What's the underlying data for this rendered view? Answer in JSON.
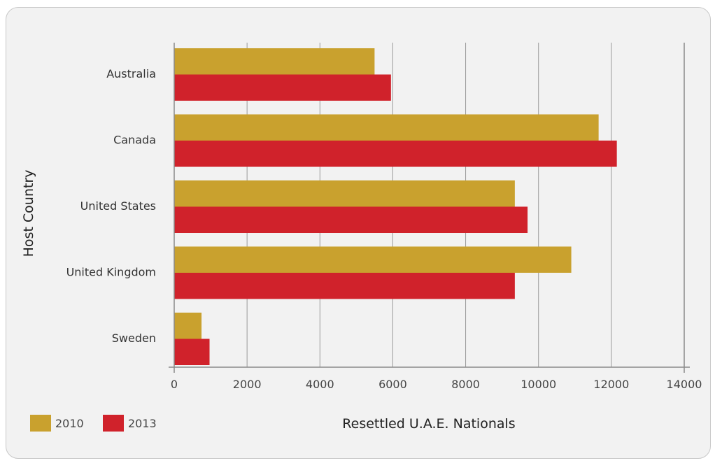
{
  "chart_data": {
    "type": "bar",
    "orientation": "horizontal",
    "title": "",
    "xlabel": "Resettled U.A.E. Nationals",
    "ylabel": "Host Country",
    "categories": [
      "Australia",
      "Canada",
      "United States",
      "United Kingdom",
      "Sweden"
    ],
    "series": [
      {
        "name": "2010",
        "color": "#c9a12e",
        "values": [
          5500,
          11650,
          9350,
          10900,
          750
        ]
      },
      {
        "name": "2013",
        "color": "#d0222b",
        "values": [
          5950,
          12150,
          9700,
          9350,
          970
        ]
      }
    ],
    "xlim": [
      0,
      14000
    ],
    "xticks": [
      0,
      2000,
      4000,
      6000,
      8000,
      10000,
      12000,
      14000
    ],
    "grid": "vertical",
    "legend_position": "bottom-left"
  }
}
